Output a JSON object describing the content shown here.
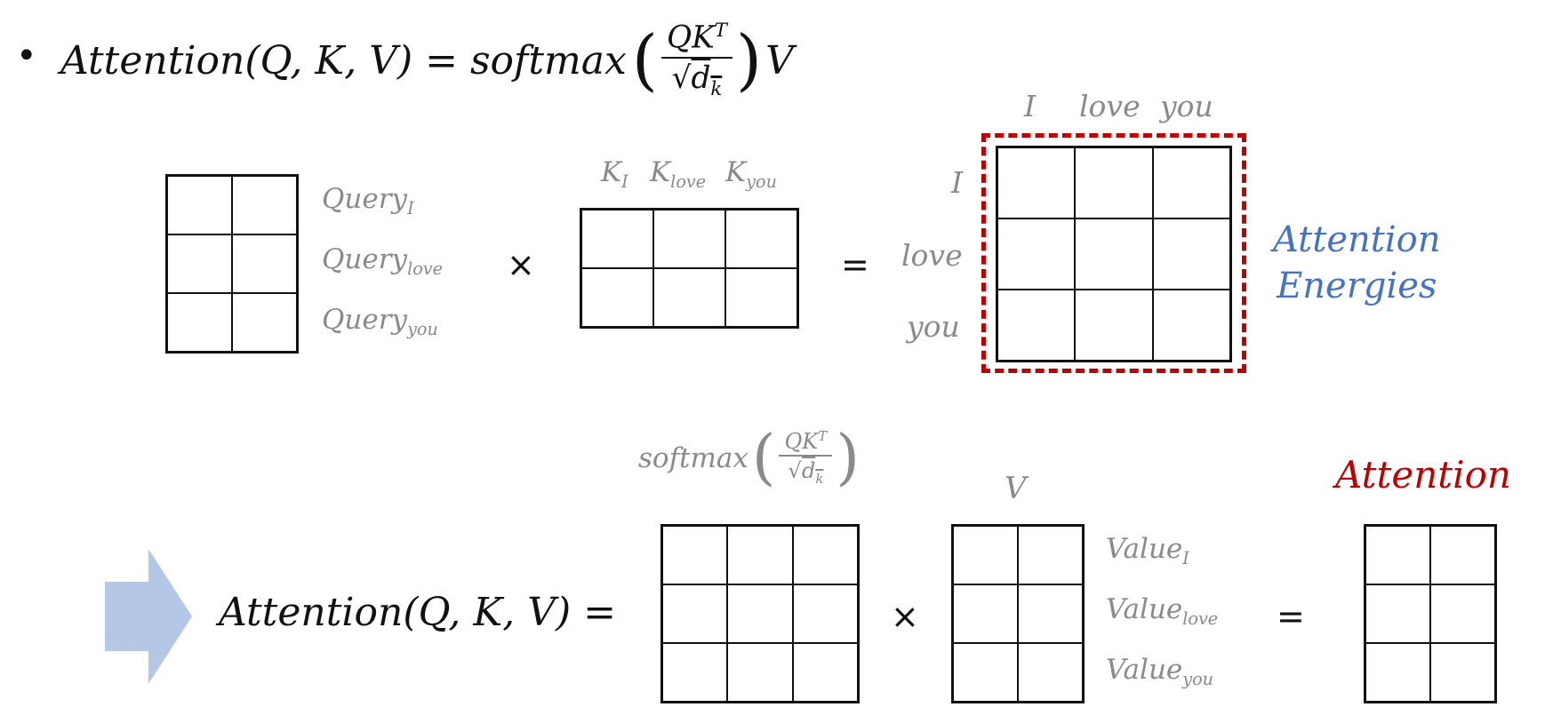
{
  "formula": {
    "bullet": "•",
    "lhs": "Attention(Q, K, V) = softmax",
    "numerator_base": "QK",
    "numerator_sup": "T",
    "denominator_root": "√",
    "denominator_base": "d",
    "denominator_sub": "k",
    "tail": "V",
    "paren_open": "(",
    "paren_close": ")"
  },
  "top": {
    "query_labels": [
      {
        "base": "Query",
        "sub": "I"
      },
      {
        "base": "Query",
        "sub": "love"
      },
      {
        "base": "Query",
        "sub": "you"
      }
    ],
    "times": "×",
    "key_labels": [
      {
        "base": "K",
        "sub": "I"
      },
      {
        "base": "K",
        "sub": "love"
      },
      {
        "base": "K",
        "sub": "you"
      }
    ],
    "equals": "=",
    "row_labels": [
      "I",
      "love",
      "you"
    ],
    "col_labels": [
      "I",
      "love",
      "you"
    ],
    "energies_label_line1": "Attention",
    "energies_label_line2": "Energies"
  },
  "bottom": {
    "lhs": "Attention(Q, K, V) =",
    "softmax_label": "softmax",
    "softmax_num_base": "QK",
    "softmax_num_sup": "T",
    "softmax_den_root": "√",
    "softmax_den_base": "d",
    "softmax_den_sub": "k",
    "v_label": "V",
    "times": "×",
    "value_labels": [
      {
        "base": "Value",
        "sub": "I"
      },
      {
        "base": "Value",
        "sub": "love"
      },
      {
        "base": "Value",
        "sub": "you"
      }
    ],
    "equals": "=",
    "result_label": "Attention"
  },
  "colors": {
    "arrow": "#b4c7e7",
    "dashed_box": "#c00000",
    "energies_text": "#4472c4",
    "result_text": "#c00000",
    "gray_text": "#8a8a8a"
  }
}
